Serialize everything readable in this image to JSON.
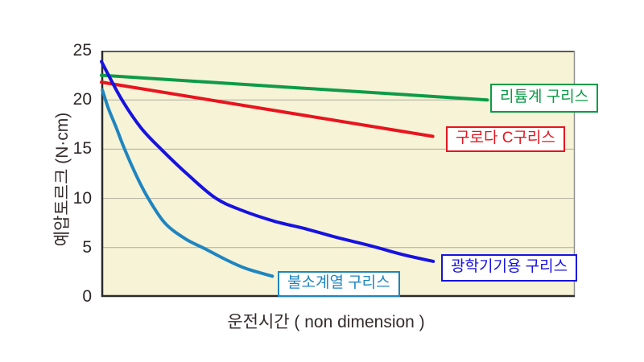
{
  "chart_data": {
    "type": "line",
    "title": "",
    "xlabel": "운전시간 ( non dimension )",
    "ylabel": "예압토르크 (N·cm)",
    "xlim": [
      0,
      1
    ],
    "ylim": [
      0,
      25
    ],
    "yticks": [
      25,
      20,
      15,
      10,
      5,
      0
    ],
    "xticks": [],
    "grid": "horizontal gridlines at y = 5, 10, 15, 20",
    "legend_position": "inline boxed labels next to line ends",
    "plot_background": "#f6f3d6",
    "grid_color": "#aeaba0",
    "series": [
      {
        "name": "리튬계 구리스",
        "color": "#0d9b47",
        "points": [
          [
            0,
            22.5
          ],
          [
            0.815,
            20.0
          ]
        ]
      },
      {
        "name": "구로다 C구리스",
        "color": "#e8141e",
        "points": [
          [
            0,
            21.8
          ],
          [
            0.7,
            16.3
          ]
        ]
      },
      {
        "name": "광학기기용 구리스",
        "color": "#1712e0",
        "points": [
          [
            0,
            23.9
          ],
          [
            0.041,
            20.2
          ],
          [
            0.083,
            17.2
          ],
          [
            0.126,
            15.0
          ],
          [
            0.185,
            12.3
          ],
          [
            0.242,
            10.0
          ],
          [
            0.296,
            8.8
          ],
          [
            0.364,
            7.7
          ],
          [
            0.432,
            6.9
          ],
          [
            0.5,
            6.0
          ],
          [
            0.568,
            5.2
          ],
          [
            0.636,
            4.3
          ],
          [
            0.701,
            3.6
          ]
        ]
      },
      {
        "name": "불소계열 구리스",
        "color": "#1f85c0",
        "points": [
          [
            0.002,
            21.0
          ],
          [
            0.015,
            19.1
          ],
          [
            0.032,
            17.1
          ],
          [
            0.049,
            15.0
          ],
          [
            0.075,
            12.2
          ],
          [
            0.099,
            10.0
          ],
          [
            0.134,
            7.5
          ],
          [
            0.177,
            5.9
          ],
          [
            0.218,
            4.9
          ],
          [
            0.262,
            3.8
          ],
          [
            0.304,
            2.9
          ],
          [
            0.361,
            2.1
          ]
        ]
      }
    ]
  }
}
